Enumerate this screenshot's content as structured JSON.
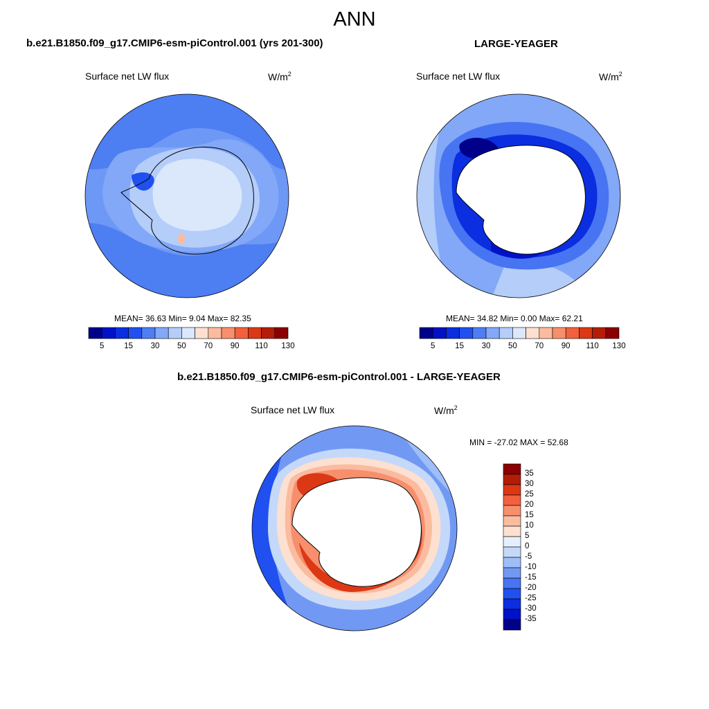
{
  "season": "ANN",
  "panels": [
    {
      "case_title": "b.e21.B1850.f09_g17.CMIP6-esm-piControl.001 (yrs 201-300)",
      "variable": "Surface net LW flux",
      "units_base": "W/m",
      "units_exp": "2",
      "stats": "MEAN=  36.63  Min=   9.04  Max=  82.35",
      "stats_values": {
        "mean": 36.63,
        "min": 9.04,
        "max": 82.35
      }
    },
    {
      "case_title": "LARGE-YEAGER",
      "variable": "Surface net LW flux",
      "units_base": "W/m",
      "units_exp": "2",
      "stats": "MEAN=  34.82  Min=   0.00  Max=  62.21",
      "stats_values": {
        "mean": 34.82,
        "min": 0.0,
        "max": 62.21
      }
    },
    {
      "case_title": "b.e21.B1850.f09_g17.CMIP6-esm-piControl.001 - LARGE-YEAGER",
      "variable": "Surface net LW flux",
      "units_base": "W/m",
      "units_exp": "2",
      "stats": "MIN = -27.02 MAX =  52.68",
      "stats_values": {
        "min": -27.02,
        "max": 52.68
      }
    }
  ],
  "colorbar_top": {
    "labels": [
      "5",
      "15",
      "30",
      "50",
      "70",
      "90",
      "110",
      "130"
    ],
    "colors": [
      "#00008b",
      "#0011c8",
      "#0a2ee0",
      "#2050f0",
      "#4f7df4",
      "#82a8f7",
      "#b4cdf9",
      "#dbe8fc",
      "#fde0d0",
      "#fbbb9f",
      "#f78f6d",
      "#f2603e",
      "#dc3815",
      "#b51c08",
      "#8b0000"
    ]
  },
  "colorbar_diff": {
    "labels": [
      "35",
      "30",
      "25",
      "20",
      "15",
      "10",
      "5",
      "0",
      "-5",
      "-10",
      "-15",
      "-20",
      "-25",
      "-30",
      "-35"
    ],
    "colors": [
      "#8b0000",
      "#b51c08",
      "#dc3815",
      "#f2603e",
      "#f78f6d",
      "#fbbb9f",
      "#fde0d0",
      "#e6f0fd",
      "#c4d8fa",
      "#9ebef8",
      "#7199f4",
      "#4774f2",
      "#2050f0",
      "#0a2ee0",
      "#0011c8",
      "#00008b"
    ]
  },
  "colors": {
    "map_bg_blue": "#4d7ef2",
    "map_mid_blue": "#82a8f7",
    "map_light_blue": "#b4cdf9",
    "map_pale": "#dbe8fc",
    "land_white": "#ffffff",
    "diff_red": "#dc3815",
    "diff_orange": "#f78f6d",
    "diff_peach": "#fbbb9f",
    "dark_blue": "#0a2ee0"
  }
}
